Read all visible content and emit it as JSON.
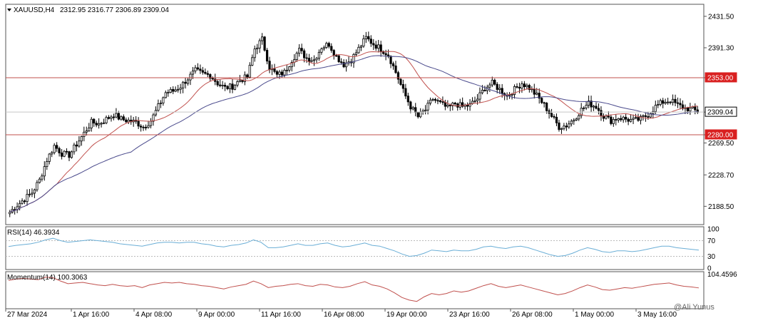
{
  "header": {
    "symbol_label": "XAUUSD,H4",
    "ohlc": "2312.95 2316.77 2306.89 2309.04",
    "rsi_label": "RSI(14) 46.3934",
    "momentum_label": "Momentum(14) 100.3063"
  },
  "watermark": "@Ali Yunus",
  "colors": {
    "candle": "#000000",
    "ma_fast": "#c0504d",
    "ma_slow": "#4a4a8c",
    "level_line": "#c0504d",
    "level_label_bg": "#d92020",
    "rsi_line": "#6aaed6",
    "momentum_line": "#c0504d"
  },
  "chart_data": [
    {
      "type": "candlestick",
      "panel": "price",
      "ylim": [
        2166,
        2446
      ],
      "price_ticks": [
        2431.5,
        2391.3,
        2353.0,
        2309.04,
        2280.0,
        2269.5,
        2228.7,
        2188.5
      ],
      "level_labels": [
        2353.0,
        2309.04,
        2280.0
      ],
      "horizontal_levels": [
        2353.0,
        2280.0
      ],
      "current_price": 2309.04,
      "x_ticks": [
        "27 Mar 2024",
        "1 Apr 16:00",
        "4 Apr 08:00",
        "9 Apr 00:00",
        "11 Apr 16:00",
        "16 Apr 08:00",
        "19 Apr 00:00",
        "23 Apr 16:00",
        "26 Apr 08:00",
        "1 May 00:00",
        "3 May 16:00"
      ],
      "close_path": [
        2181,
        2190,
        2198,
        2206,
        2222,
        2248,
        2266,
        2256,
        2254,
        2268,
        2282,
        2296,
        2294,
        2300,
        2306,
        2300,
        2298,
        2296,
        2290,
        2298,
        2316,
        2334,
        2336,
        2342,
        2352,
        2362,
        2358,
        2356,
        2346,
        2340,
        2342,
        2350,
        2354,
        2390,
        2402,
        2366,
        2356,
        2360,
        2376,
        2388,
        2378,
        2376,
        2392,
        2396,
        2380,
        2370,
        2376,
        2390,
        2404,
        2396,
        2390,
        2382,
        2360,
        2336,
        2316,
        2303,
        2312,
        2326,
        2320,
        2314,
        2320,
        2316,
        2318,
        2326,
        2340,
        2346,
        2338,
        2330,
        2338,
        2346,
        2340,
        2330,
        2318,
        2304,
        2290,
        2292,
        2300,
        2312,
        2320,
        2316,
        2304,
        2298,
        2302,
        2300,
        2298,
        2300,
        2306,
        2316,
        2322,
        2324,
        2318,
        2314,
        2312,
        2309
      ]
    },
    {
      "type": "line",
      "panel": "rsi",
      "name": "RSI(14) 46.3934",
      "ylim": [
        0,
        100
      ],
      "y_ticks": [
        100,
        70,
        30,
        0
      ],
      "values": [
        55,
        58,
        60,
        62,
        66,
        72,
        76,
        70,
        66,
        68,
        70,
        72,
        70,
        68,
        66,
        62,
        60,
        58,
        56,
        60,
        64,
        66,
        66,
        64,
        66,
        66,
        62,
        60,
        56,
        54,
        58,
        60,
        64,
        72,
        66,
        52,
        52,
        54,
        58,
        62,
        58,
        58,
        62,
        64,
        58,
        54,
        56,
        60,
        64,
        58,
        56,
        50,
        44,
        36,
        30,
        32,
        38,
        46,
        44,
        42,
        46,
        44,
        44,
        48,
        54,
        56,
        52,
        50,
        54,
        56,
        52,
        46,
        40,
        34,
        30,
        32,
        38,
        46,
        52,
        48,
        42,
        40,
        44,
        44,
        42,
        44,
        48,
        52,
        56,
        56,
        52,
        50,
        48,
        46
      ]
    },
    {
      "type": "line",
      "panel": "momentum",
      "name": "Momentum(14) 100.3063",
      "ylim": [
        94.4,
        104.6
      ],
      "y_ticks": [
        104.4596
      ],
      "values": [
        102.6,
        103.0,
        103.2,
        103.0,
        102.8,
        103.6,
        103.4,
        102.4,
        101.6,
        101.8,
        102.0,
        101.6,
        101.2,
        101.0,
        101.4,
        101.0,
        100.8,
        101.0,
        100.4,
        101.2,
        101.6,
        102.0,
        101.8,
        102.0,
        101.6,
        101.4,
        101.0,
        100.8,
        100.4,
        100.0,
        100.6,
        101.0,
        101.4,
        102.4,
        101.6,
        100.4,
        100.8,
        101.0,
        101.4,
        101.6,
        101.0,
        100.8,
        101.4,
        101.2,
        100.6,
        100.4,
        100.8,
        101.6,
        102.2,
        101.2,
        100.8,
        100.0,
        98.8,
        97.4,
        96.6,
        96.2,
        97.6,
        98.6,
        98.2,
        98.6,
        99.4,
        99.0,
        99.4,
        100.2,
        101.0,
        101.6,
        100.8,
        100.4,
        100.8,
        101.2,
        100.6,
        100.0,
        99.4,
        98.8,
        98.2,
        98.6,
        99.4,
        100.4,
        101.2,
        100.6,
        99.8,
        99.6,
        100.0,
        100.4,
        100.2,
        100.6,
        101.0,
        101.4,
        101.6,
        101.8,
        101.2,
        100.8,
        100.6,
        100.3
      ]
    }
  ]
}
